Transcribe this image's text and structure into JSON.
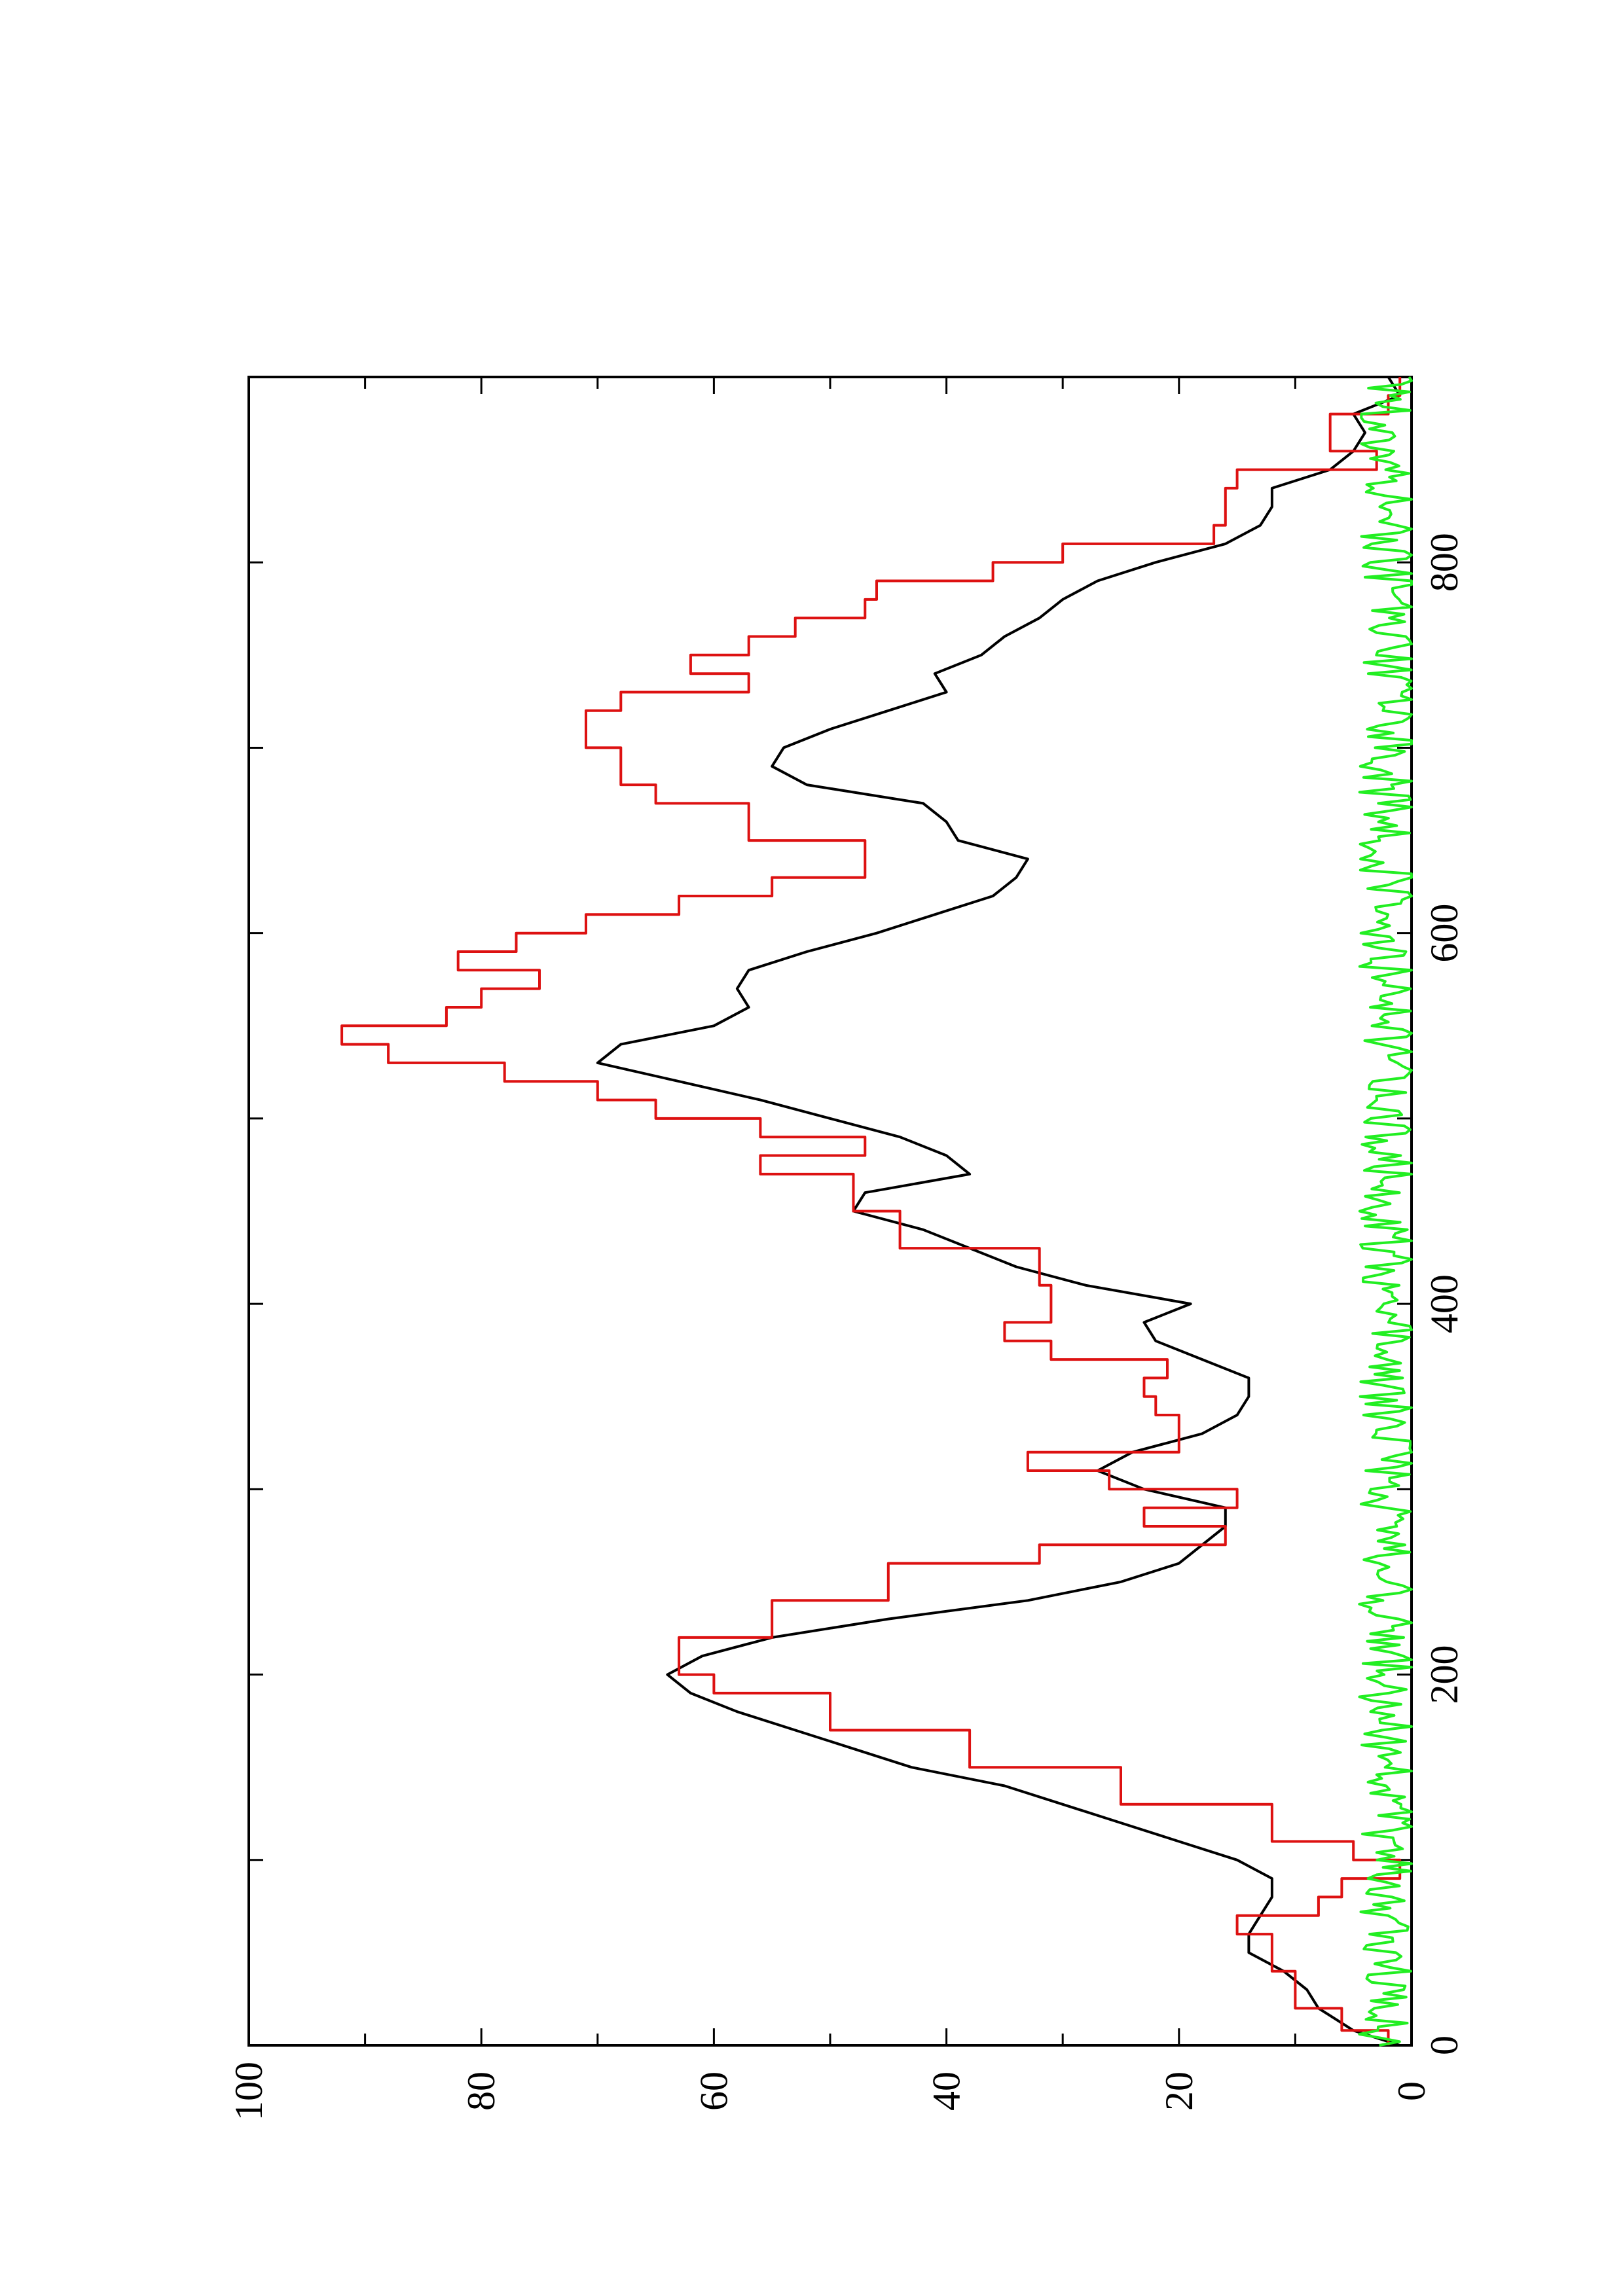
{
  "chart_data": {
    "type": "line",
    "title": "",
    "xlabel": "",
    "ylabel": "",
    "rotated": "90deg counter-clockwise (x axis reads bottom-to-top, y axis reads right-to-left)",
    "xlim": [
      0,
      900
    ],
    "ylim": [
      0,
      100
    ],
    "x_ticks": [
      "0",
      "200",
      "400",
      "600",
      "800"
    ],
    "y_ticks": [
      "0",
      "20",
      "40",
      "60",
      "80",
      "100"
    ],
    "grid": false,
    "legend": "none",
    "series": [
      {
        "color": "#000000",
        "style": "line",
        "points": [
          [
            0,
            1
          ],
          [
            8,
            5
          ],
          [
            20,
            8
          ],
          [
            30,
            9
          ],
          [
            40,
            11
          ],
          [
            50,
            14
          ],
          [
            60,
            14
          ],
          [
            70,
            13
          ],
          [
            80,
            12
          ],
          [
            90,
            12
          ],
          [
            100,
            15
          ],
          [
            110,
            20
          ],
          [
            120,
            25
          ],
          [
            130,
            30
          ],
          [
            140,
            35
          ],
          [
            150,
            43
          ],
          [
            160,
            48
          ],
          [
            170,
            53
          ],
          [
            180,
            58
          ],
          [
            190,
            62
          ],
          [
            200,
            64
          ],
          [
            210,
            61
          ],
          [
            220,
            55
          ],
          [
            230,
            45
          ],
          [
            240,
            33
          ],
          [
            250,
            25
          ],
          [
            260,
            20
          ],
          [
            270,
            18
          ],
          [
            280,
            16
          ],
          [
            290,
            16
          ],
          [
            300,
            23
          ],
          [
            310,
            27
          ],
          [
            320,
            24
          ],
          [
            330,
            18
          ],
          [
            340,
            15
          ],
          [
            350,
            14
          ],
          [
            360,
            14
          ],
          [
            370,
            18
          ],
          [
            380,
            22
          ],
          [
            390,
            23
          ],
          [
            400,
            19
          ],
          [
            410,
            28
          ],
          [
            420,
            34
          ],
          [
            430,
            38
          ],
          [
            440,
            42
          ],
          [
            450,
            48
          ],
          [
            460,
            47
          ],
          [
            470,
            38
          ],
          [
            480,
            40
          ],
          [
            490,
            44
          ],
          [
            500,
            50
          ],
          [
            510,
            56
          ],
          [
            520,
            63
          ],
          [
            530,
            70
          ],
          [
            540,
            68
          ],
          [
            550,
            60
          ],
          [
            560,
            57
          ],
          [
            570,
            58
          ],
          [
            580,
            57
          ],
          [
            590,
            52
          ],
          [
            600,
            46
          ],
          [
            610,
            41
          ],
          [
            620,
            36
          ],
          [
            630,
            34
          ],
          [
            640,
            33
          ],
          [
            650,
            39
          ],
          [
            660,
            40
          ],
          [
            670,
            42
          ],
          [
            680,
            52
          ],
          [
            690,
            55
          ],
          [
            700,
            54
          ],
          [
            710,
            50
          ],
          [
            720,
            45
          ],
          [
            730,
            40
          ],
          [
            740,
            41
          ],
          [
            750,
            37
          ],
          [
            760,
            35
          ],
          [
            770,
            32
          ],
          [
            780,
            30
          ],
          [
            790,
            27
          ],
          [
            800,
            22
          ],
          [
            810,
            16
          ],
          [
            820,
            13
          ],
          [
            830,
            12
          ],
          [
            840,
            12
          ],
          [
            850,
            7
          ],
          [
            860,
            5
          ],
          [
            870,
            4
          ],
          [
            880,
            5
          ],
          [
            890,
            1
          ],
          [
            900,
            2
          ]
        ]
      },
      {
        "color": "#dd1111",
        "style": "step",
        "points": [
          [
            0,
            2
          ],
          [
            8,
            6
          ],
          [
            20,
            10
          ],
          [
            40,
            12
          ],
          [
            60,
            15
          ],
          [
            70,
            8
          ],
          [
            80,
            6
          ],
          [
            90,
            1
          ],
          [
            100,
            5
          ],
          [
            110,
            12
          ],
          [
            130,
            25
          ],
          [
            150,
            38
          ],
          [
            170,
            50
          ],
          [
            190,
            60
          ],
          [
            200,
            63
          ],
          [
            220,
            55
          ],
          [
            240,
            45
          ],
          [
            260,
            32
          ],
          [
            270,
            16
          ],
          [
            280,
            23
          ],
          [
            290,
            15
          ],
          [
            300,
            26
          ],
          [
            310,
            33
          ],
          [
            320,
            20
          ],
          [
            330,
            20
          ],
          [
            340,
            22
          ],
          [
            350,
            23
          ],
          [
            360,
            21
          ],
          [
            370,
            31
          ],
          [
            380,
            35
          ],
          [
            390,
            31
          ],
          [
            400,
            31
          ],
          [
            410,
            32
          ],
          [
            430,
            44
          ],
          [
            450,
            48
          ],
          [
            470,
            56
          ],
          [
            480,
            47
          ],
          [
            490,
            56
          ],
          [
            500,
            65
          ],
          [
            510,
            70
          ],
          [
            520,
            78
          ],
          [
            530,
            88
          ],
          [
            540,
            92
          ],
          [
            550,
            83
          ],
          [
            560,
            80
          ],
          [
            570,
            75
          ],
          [
            580,
            82
          ],
          [
            590,
            77
          ],
          [
            600,
            71
          ],
          [
            610,
            63
          ],
          [
            620,
            55
          ],
          [
            630,
            47
          ],
          [
            640,
            47
          ],
          [
            650,
            57
          ],
          [
            670,
            65
          ],
          [
            680,
            68
          ],
          [
            700,
            71
          ],
          [
            710,
            71
          ],
          [
            720,
            68
          ],
          [
            730,
            57
          ],
          [
            740,
            62
          ],
          [
            750,
            57
          ],
          [
            760,
            53
          ],
          [
            770,
            47
          ],
          [
            780,
            46
          ],
          [
            790,
            36
          ],
          [
            800,
            30
          ],
          [
            810,
            17
          ],
          [
            820,
            16
          ],
          [
            830,
            16
          ],
          [
            840,
            15
          ],
          [
            850,
            3
          ],
          [
            860,
            7
          ],
          [
            870,
            7
          ],
          [
            880,
            2
          ],
          [
            890,
            1
          ],
          [
            900,
            1
          ]
        ]
      },
      {
        "color": "#22ee22",
        "style": "noise",
        "baseline_mean": 2,
        "amplitude": 2.5,
        "x_range": [
          0,
          900
        ]
      }
    ]
  }
}
